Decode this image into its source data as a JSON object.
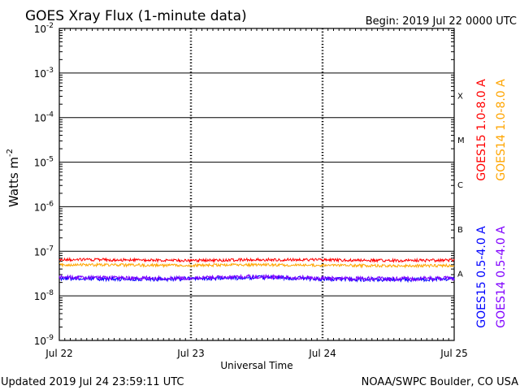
{
  "chart_data": {
    "type": "line",
    "title": "GOES Xray Flux (1-minute data)",
    "begin_label": "Begin:  2019 Jul 22 0000 UTC",
    "xlabel": "Universal Time",
    "ylabel": "Watts m",
    "ylabel_exp": "-2",
    "yscale": "log",
    "ylim": [
      1e-09,
      0.01
    ],
    "xlim": [
      "2019-07-22 00:00",
      "2019-07-25 00:00"
    ],
    "x_ticks": [
      "Jul 22",
      "Jul 23",
      "Jul 24",
      "Jul 25"
    ],
    "y_ticks": [
      {
        "value": 0.01,
        "base": "10",
        "exp": "-2"
      },
      {
        "value": 0.001,
        "base": "10",
        "exp": "-3"
      },
      {
        "value": 0.0001,
        "base": "10",
        "exp": "-4"
      },
      {
        "value": 1e-05,
        "base": "10",
        "exp": "-5"
      },
      {
        "value": 1e-06,
        "base": "10",
        "exp": "-6"
      },
      {
        "value": 1e-07,
        "base": "10",
        "exp": "-7"
      },
      {
        "value": 1e-08,
        "base": "10",
        "exp": "-8"
      },
      {
        "value": 1e-09,
        "base": "10",
        "exp": "-9"
      }
    ],
    "flare_classes": [
      {
        "label": "X",
        "value": 0.0001
      },
      {
        "label": "M",
        "value": 1e-05
      },
      {
        "label": "C",
        "value": 1e-06
      },
      {
        "label": "B",
        "value": 1e-07
      },
      {
        "label": "A",
        "value": 1e-08
      }
    ],
    "grid": true,
    "legend_position": "right",
    "series": [
      {
        "name": "GOES15 1.0-8.0 A",
        "color": "#ff0000",
        "x": [
          "2019-07-22 00:00",
          "2019-07-22 12:00",
          "2019-07-23 00:00",
          "2019-07-23 12:00",
          "2019-07-24 00:00",
          "2019-07-24 12:00",
          "2019-07-25 00:00"
        ],
        "values": [
          6.5e-08,
          6.4e-08,
          6.2e-08,
          6.5e-08,
          6.4e-08,
          6.2e-08,
          6.3e-08
        ]
      },
      {
        "name": "GOES14 1.0-8.0 A",
        "color": "#ffa500",
        "x": [
          "2019-07-22 00:00",
          "2019-07-22 12:00",
          "2019-07-23 00:00",
          "2019-07-23 12:00",
          "2019-07-24 00:00",
          "2019-07-24 12:00",
          "2019-07-25 00:00"
        ],
        "values": [
          5e-08,
          4.9e-08,
          4.8e-08,
          5e-08,
          4.9e-08,
          4.7e-08,
          4.8e-08
        ]
      },
      {
        "name": "GOES15 0.5-4.0 A",
        "color": "#0000ff",
        "x": [
          "2019-07-22 00:00",
          "2019-07-22 12:00",
          "2019-07-23 00:00",
          "2019-07-23 12:00",
          "2019-07-24 00:00",
          "2019-07-24 12:00",
          "2019-07-25 00:00"
        ],
        "values": [
          2.5e-08,
          2.4e-08,
          2.4e-08,
          2.6e-08,
          2.4e-08,
          2.3e-08,
          2.4e-08
        ]
      },
      {
        "name": "GOES14 0.5-4.0 A",
        "color": "#7f00ff",
        "x": [
          "2019-07-22 00:00",
          "2019-07-22 12:00",
          "2019-07-23 00:00",
          "2019-07-23 12:00",
          "2019-07-24 00:00",
          "2019-07-24 12:00",
          "2019-07-25 00:00"
        ],
        "values": [
          2.6e-08,
          2.5e-08,
          2.5e-08,
          2.7e-08,
          2.5e-08,
          2.4e-08,
          2.5e-08
        ]
      }
    ]
  },
  "footer": {
    "updated": "Updated 2019 Jul 24 23:59:11 UTC",
    "credit": "NOAA/SWPC Boulder, CO USA"
  }
}
